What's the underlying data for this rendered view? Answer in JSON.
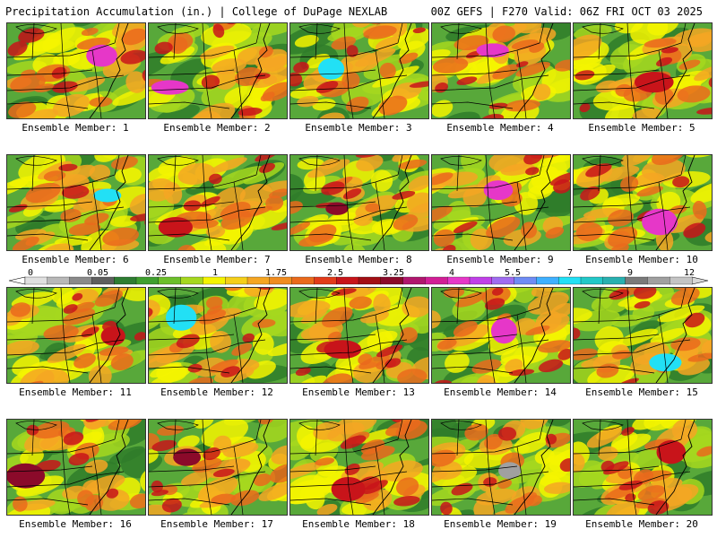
{
  "header": {
    "left_title": "Precipitation Accumulation (in.) | College of DuPage NEXLAB",
    "right_title": "00Z GEFS | F270 Valid: 06Z FRI OCT 03 2025"
  },
  "panels": [
    {
      "member": 1,
      "label": "Ensemble Member: 1",
      "max_level": "5.5"
    },
    {
      "member": 2,
      "label": "Ensemble Member: 2",
      "max_level": "5.5"
    },
    {
      "member": 3,
      "label": "Ensemble Member: 3",
      "max_level": "7"
    },
    {
      "member": 4,
      "label": "Ensemble Member: 4",
      "max_level": "5.5"
    },
    {
      "member": 5,
      "label": "Ensemble Member: 5",
      "max_level": "3.25"
    },
    {
      "member": 6,
      "label": "Ensemble Member: 6",
      "max_level": "7"
    },
    {
      "member": 7,
      "label": "Ensemble Member: 7",
      "max_level": "3.25"
    },
    {
      "member": 8,
      "label": "Ensemble Member: 8",
      "max_level": "4"
    },
    {
      "member": 9,
      "label": "Ensemble Member: 9",
      "max_level": "5.5"
    },
    {
      "member": 10,
      "label": "Ensemble Member: 10",
      "max_level": "5.5"
    },
    {
      "member": 11,
      "label": "Ensemble Member: 11",
      "max_level": "3.25"
    },
    {
      "member": 12,
      "label": "Ensemble Member: 12",
      "max_level": "7"
    },
    {
      "member": 13,
      "label": "Ensemble Member: 13",
      "max_level": "3.25"
    },
    {
      "member": 14,
      "label": "Ensemble Member: 14",
      "max_level": "5.5"
    },
    {
      "member": 15,
      "label": "Ensemble Member: 15",
      "max_level": "7"
    },
    {
      "member": 16,
      "label": "Ensemble Member: 16",
      "max_level": "4"
    },
    {
      "member": 17,
      "label": "Ensemble Member: 17",
      "max_level": "4"
    },
    {
      "member": 18,
      "label": "Ensemble Member: 18",
      "max_level": "3.25"
    },
    {
      "member": 19,
      "label": "Ensemble Member: 19",
      "max_level": "9"
    },
    {
      "member": 20,
      "label": "Ensemble Member: 20",
      "max_level": "3.25"
    }
  ],
  "colorbar": {
    "tick_labels": [
      "0",
      "0.05",
      "0.25",
      "1",
      "1.75",
      "2.5",
      "3.25",
      "4",
      "5.5",
      "7",
      "9",
      "12"
    ],
    "colors": [
      "#e0e0e0",
      "#b8b8b8",
      "#8a8a8a",
      "#5e5e5e",
      "#2e7d32",
      "#3f9f2f",
      "#6cbf2a",
      "#a6d81f",
      "#f4f400",
      "#f5cf1a",
      "#f5a623",
      "#f08c1f",
      "#ea6a1c",
      "#e23b1a",
      "#c8141a",
      "#a30f14",
      "#8b0a2a",
      "#b0166e",
      "#d21e96",
      "#e637c8",
      "#c040e8",
      "#9f6cf0",
      "#6f8cf5",
      "#3fb0ff",
      "#22e0f5",
      "#22c8c8",
      "#28b0b0",
      "#7a7a7a",
      "#a0a0a0",
      "#c4c4c4"
    ]
  }
}
